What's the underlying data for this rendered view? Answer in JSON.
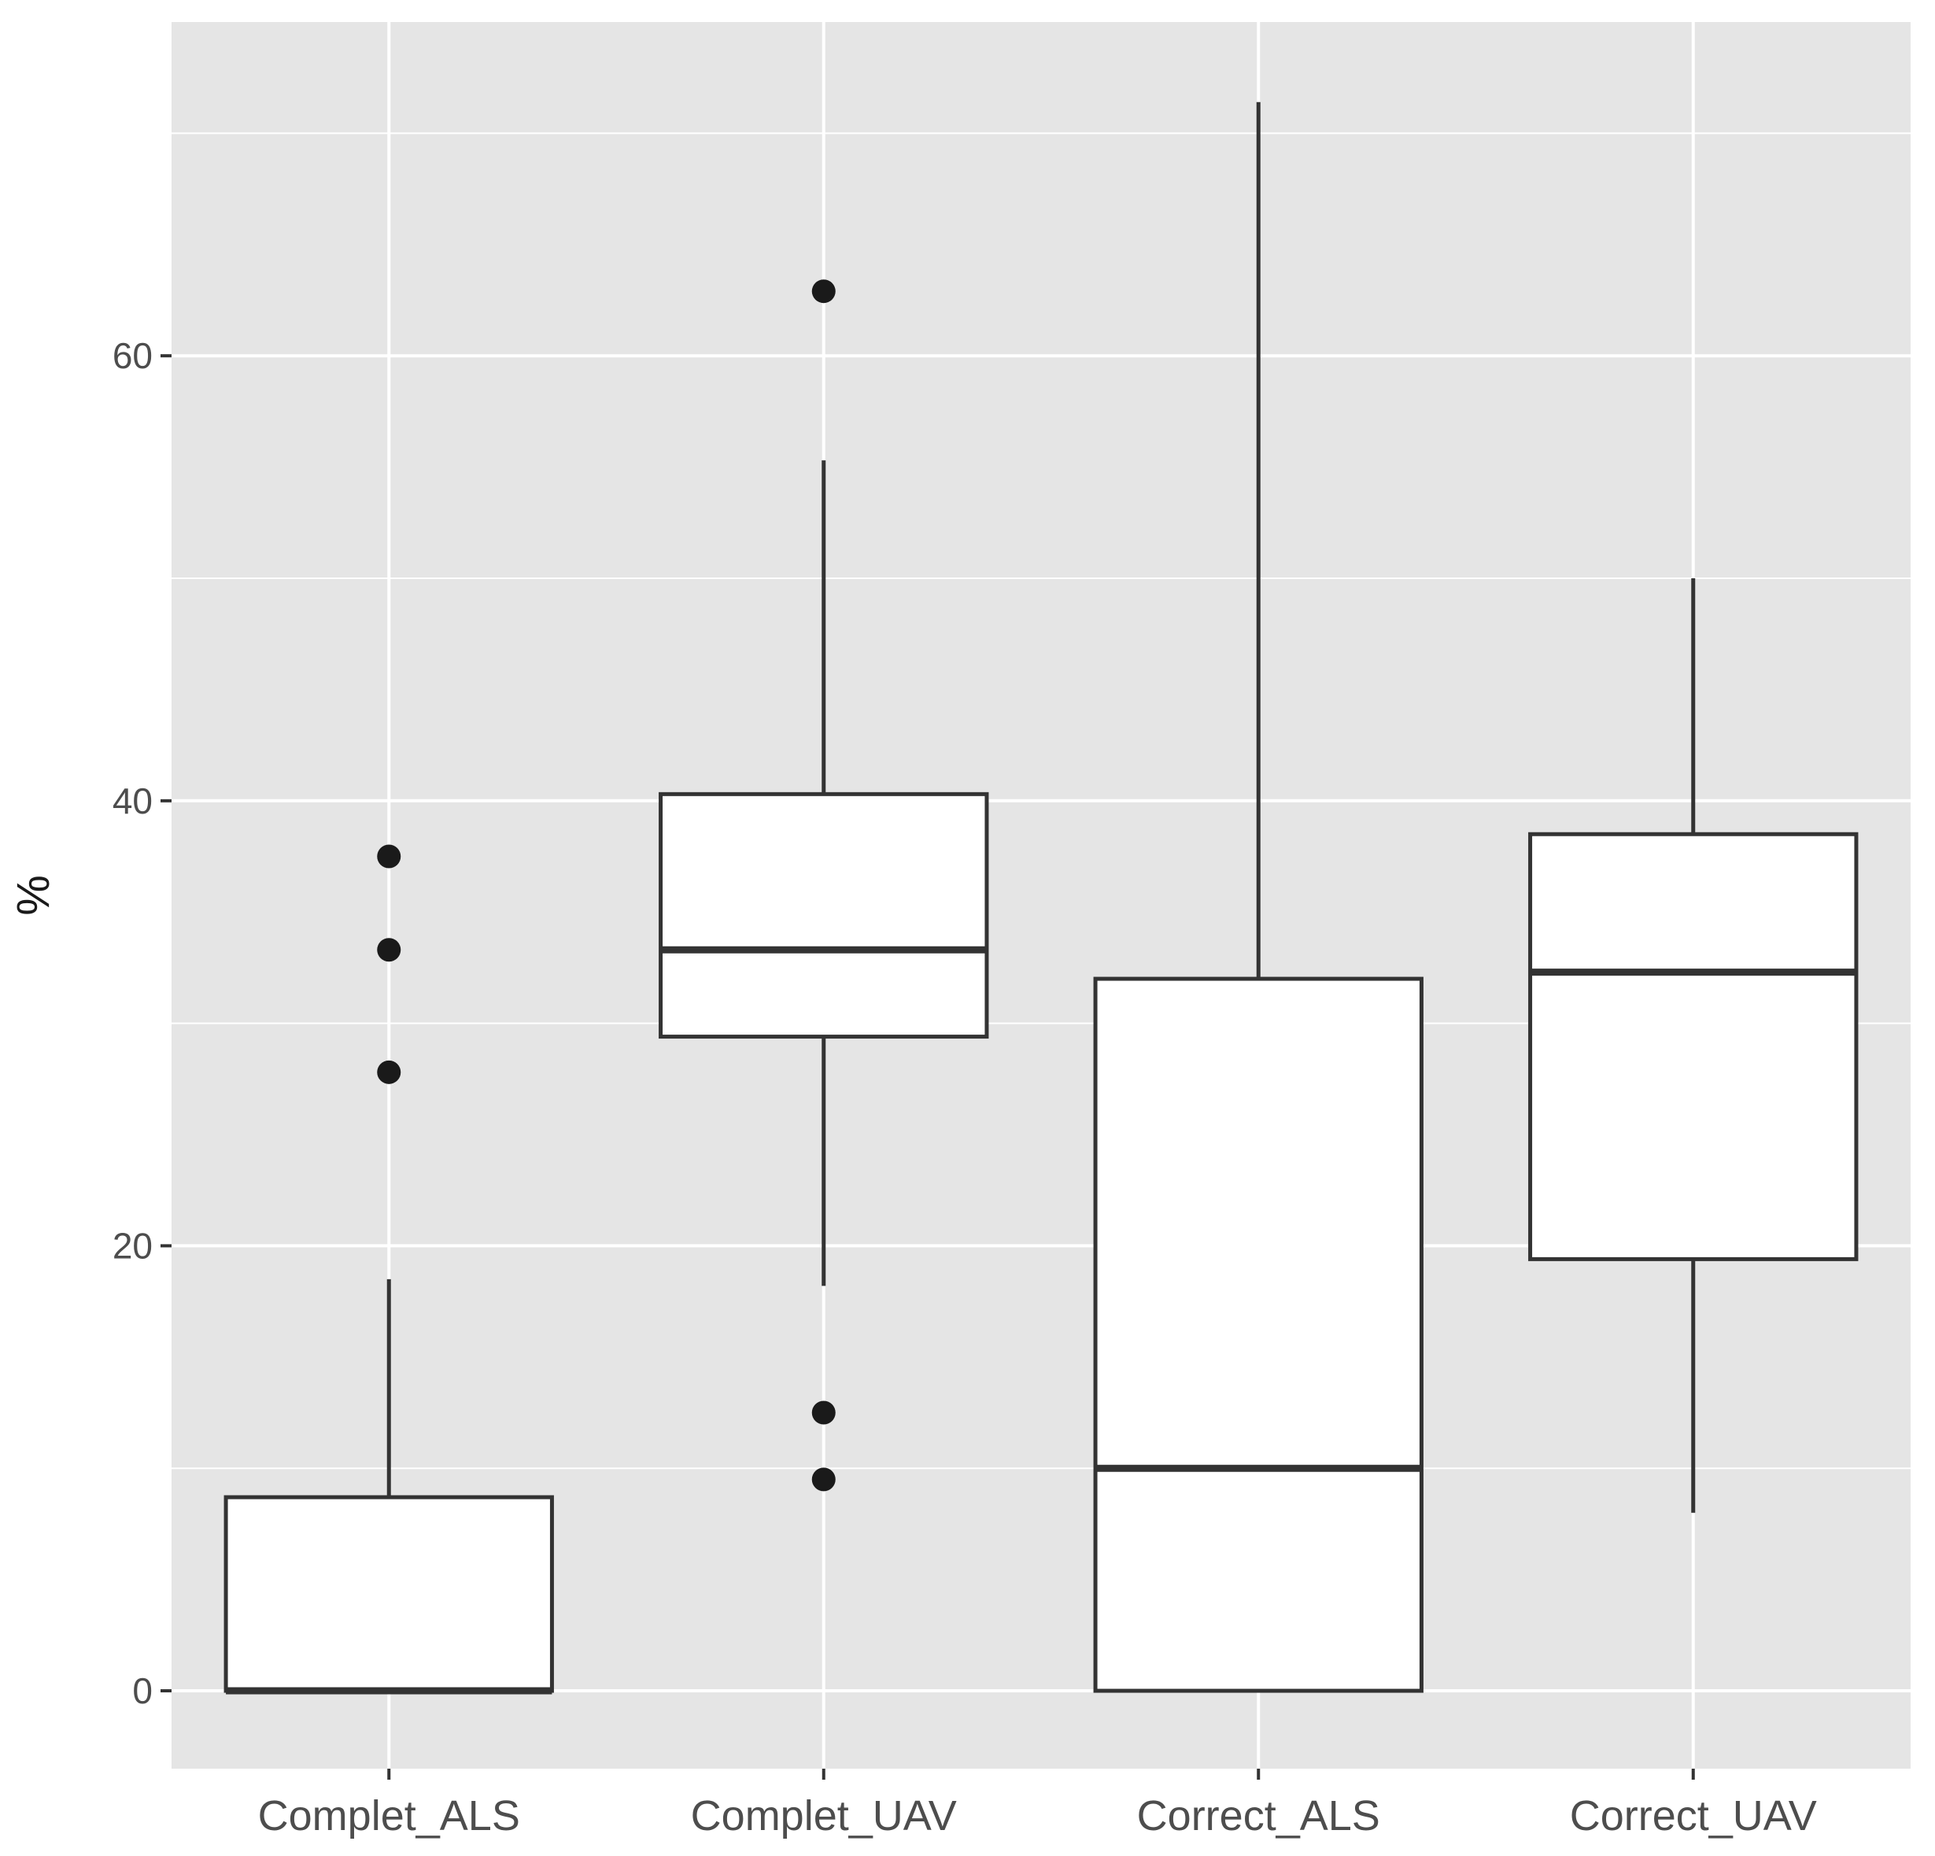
{
  "chart_data": {
    "type": "boxplot",
    "title": "",
    "xlabel": "",
    "ylabel": "%",
    "ylim": [
      -3.5,
      75
    ],
    "yticks": [
      0,
      20,
      40,
      60
    ],
    "yticks_labels": [
      "0",
      "20",
      "40",
      "60"
    ],
    "grid": true,
    "legend": "none",
    "categories": [
      "Complet_ALS",
      "Complet_UAV",
      "Correct_ALS",
      "Correct_UAV"
    ],
    "boxes": [
      {
        "category": "Complet_ALS",
        "min": 0,
        "q1": 0,
        "median": 0,
        "q3": 8.7,
        "max": 18.5,
        "outliers": [
          27.8,
          33.3,
          37.5
        ]
      },
      {
        "category": "Complet_UAV",
        "min": 18.2,
        "q1": 29.4,
        "median": 33.3,
        "q3": 40.3,
        "max": 55.3,
        "outliers": [
          9.5,
          12.5,
          62.9
        ]
      },
      {
        "category": "Correct_ALS",
        "min": 0,
        "q1": 0,
        "median": 10.0,
        "q3": 32.0,
        "max": 71.4,
        "outliers": []
      },
      {
        "category": "Correct_UAV",
        "min": 8.0,
        "q1": 19.4,
        "median": 32.3,
        "q3": 38.5,
        "max": 50.0,
        "outliers": []
      }
    ],
    "colors": {
      "panel_background": "#e5e5e5",
      "grid": "#ffffff",
      "box_fill": "#ffffff",
      "box_stroke": "#333333",
      "outlier": "#1a1a1a",
      "tick": "#333333"
    }
  }
}
